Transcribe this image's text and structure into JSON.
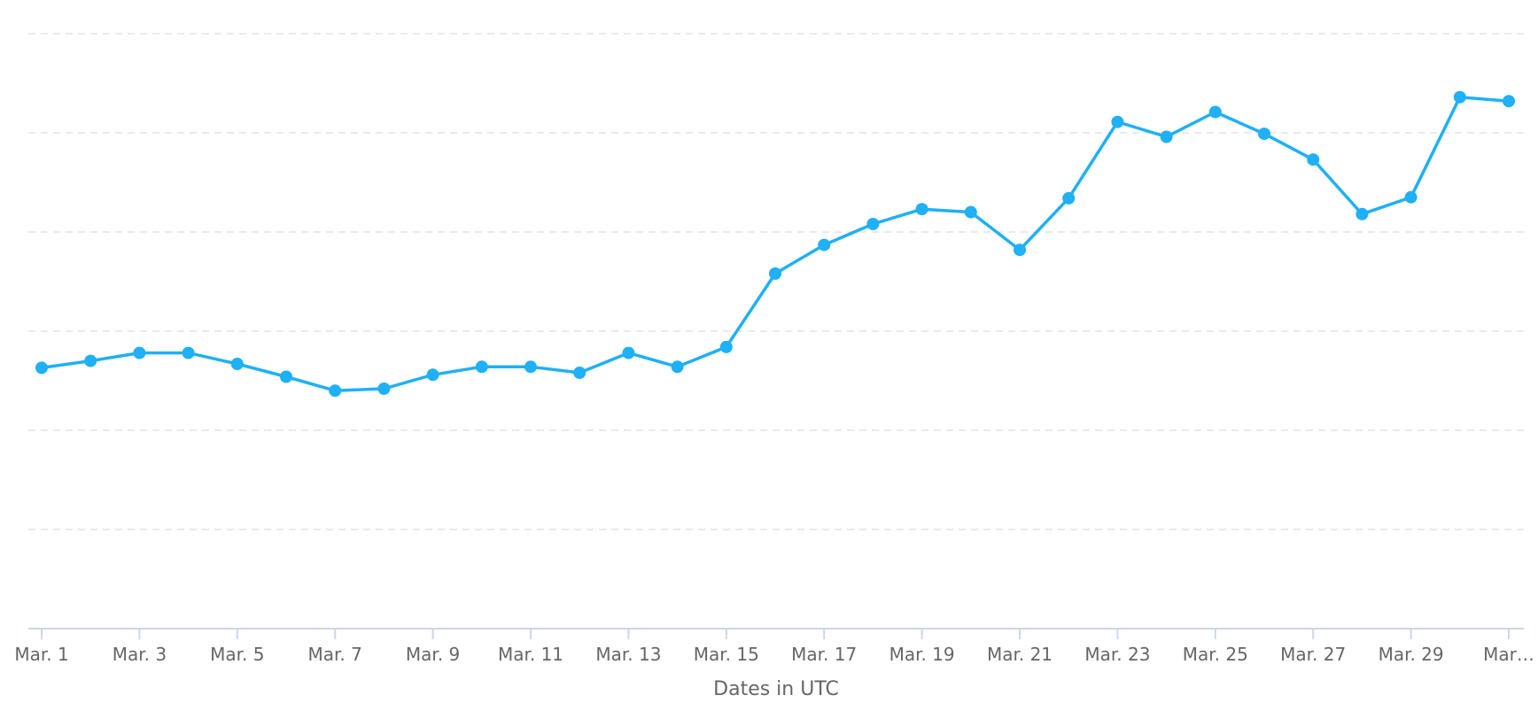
{
  "chart_data": {
    "type": "line",
    "x": [
      "Mar. 1",
      "Mar. 2",
      "Mar. 3",
      "Mar. 4",
      "Mar. 5",
      "Mar. 6",
      "Mar. 7",
      "Mar. 8",
      "Mar. 9",
      "Mar. 10",
      "Mar. 11",
      "Mar. 12",
      "Mar. 13",
      "Mar. 14",
      "Mar. 15",
      "Mar. 16",
      "Mar. 17",
      "Mar. 18",
      "Mar. 19",
      "Mar. 20",
      "Mar. 21",
      "Mar. 22",
      "Mar. 23",
      "Mar. 24",
      "Mar. 25",
      "Mar. 26",
      "Mar. 27",
      "Mar. 28",
      "Mar. 29",
      "Mar. 30",
      "Mar. 31"
    ],
    "x_tick_labels": [
      "Mar. 1",
      "Mar. 3",
      "Mar. 5",
      "Mar. 7",
      "Mar. 9",
      "Mar. 11",
      "Mar. 13",
      "Mar. 15",
      "Mar. 17",
      "Mar. 19",
      "Mar. 21",
      "Mar. 23",
      "Mar. 25",
      "Mar. 27",
      "Mar. 29",
      "Mar…"
    ],
    "series": [
      {
        "values": [
          2.63,
          2.7,
          2.78,
          2.78,
          2.67,
          2.54,
          2.4,
          2.42,
          2.56,
          2.64,
          2.64,
          2.58,
          2.78,
          2.64,
          2.84,
          3.58,
          3.87,
          4.08,
          4.23,
          4.2,
          3.82,
          4.34,
          5.11,
          4.96,
          5.21,
          4.99,
          4.73,
          4.18,
          4.35,
          5.36,
          5.32
        ],
        "color": "#1fb0f5"
      }
    ],
    "xlabel": "Dates in UTC",
    "ylabel": "",
    "ylim": [
      0,
      6
    ],
    "grid": true,
    "legend": "none"
  }
}
